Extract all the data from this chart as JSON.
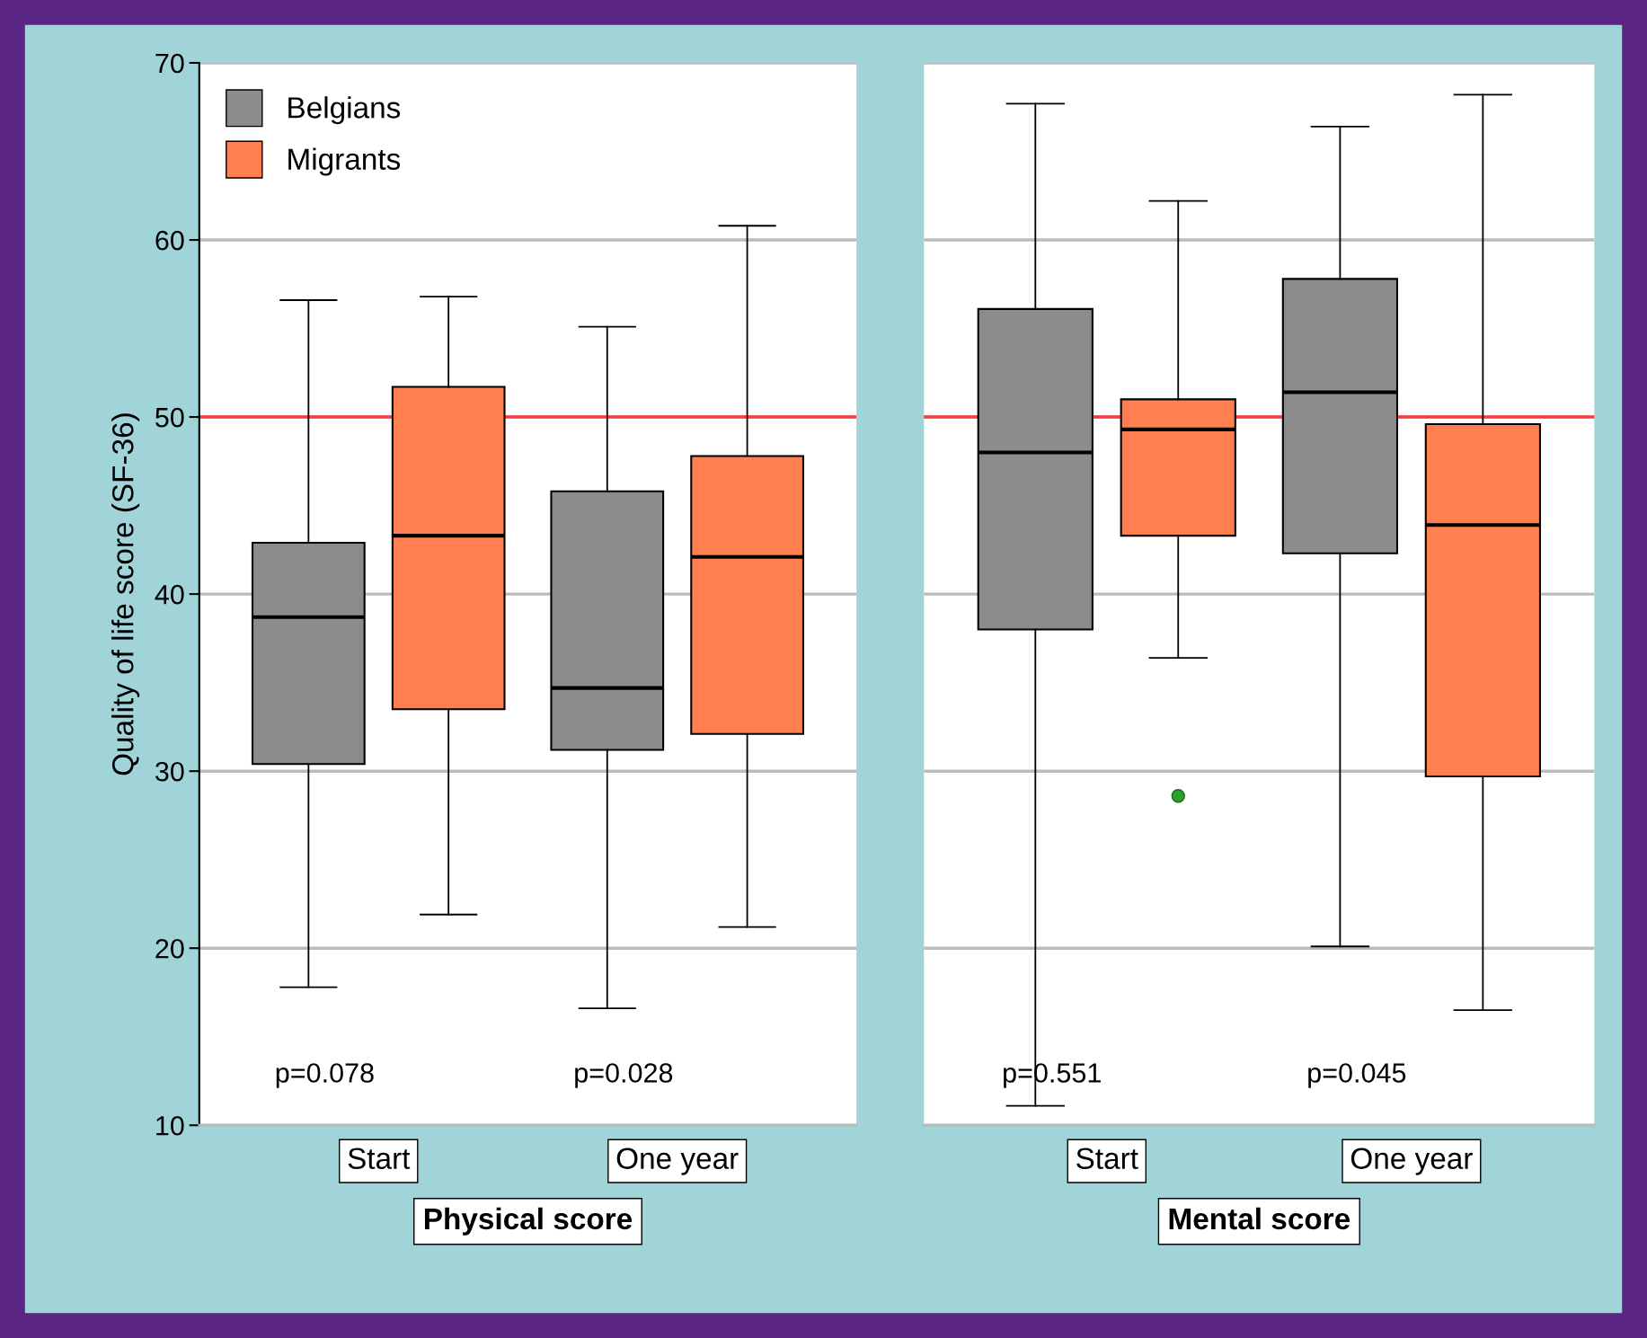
{
  "chart_data": [
    {
      "type": "box",
      "ylabel": "Quality of life score (SF-36)",
      "xlabel": "Physical score",
      "categories": [
        "Start",
        "One year"
      ],
      "series": [
        {
          "name": "Belgians",
          "color": "#8c8c8c",
          "boxes": [
            {
              "low": 17.8,
              "q1": 30.4,
              "median": 38.7,
              "q3": 42.9,
              "high": 56.6
            },
            {
              "low": 16.6,
              "q1": 31.2,
              "median": 34.7,
              "q3": 45.8,
              "high": 55.1
            }
          ]
        },
        {
          "name": "Migrants",
          "color": "#ff7f50",
          "boxes": [
            {
              "low": 21.9,
              "q1": 33.5,
              "median": 43.3,
              "q3": 51.7,
              "high": 56.8
            },
            {
              "low": 21.2,
              "q1": 32.1,
              "median": 42.1,
              "q3": 47.8,
              "high": 60.8
            }
          ]
        }
      ],
      "ylim": [
        10,
        70
      ],
      "yticks": [
        10,
        20,
        30,
        40,
        50,
        60,
        70
      ],
      "grid": "y",
      "legend": "top left",
      "ref_lines": [
        {
          "axis": "y",
          "value": 50,
          "color": "#ff3b3b"
        }
      ],
      "annotations": [
        "p=0.078",
        "p=0.028"
      ]
    },
    {
      "type": "box",
      "xlabel": "Mental score",
      "categories": [
        "Start",
        "One year"
      ],
      "series": [
        {
          "color": "#8c8c8c",
          "boxes": [
            {
              "low": 11.1,
              "q1": 38.0,
              "median": 48.0,
              "q3": 56.1,
              "high": 67.7
            },
            {
              "low": 20.1,
              "q1": 42.3,
              "median": 51.4,
              "q3": 57.8,
              "high": 66.4
            }
          ]
        },
        {
          "color": "#ff7f50",
          "boxes": [
            {
              "low": 36.4,
              "q1": 43.3,
              "median": 49.3,
              "q3": 51.0,
              "high": 62.2,
              "outliers": [
                28.6
              ]
            },
            {
              "low": 16.5,
              "q1": 29.7,
              "median": 43.9,
              "q3": 49.6,
              "high": 68.2
            }
          ]
        }
      ],
      "ylim": [
        10,
        70
      ],
      "yticks": [
        10,
        20,
        30,
        40,
        50,
        60,
        70
      ],
      "grid": "y",
      "tick_labels": "x",
      "ref_lines": [
        {
          "axis": "y",
          "value": 50,
          "color": "#ff3b3b"
        }
      ],
      "annotations": [
        "p=0.551",
        "p=0.045"
      ]
    }
  ]
}
